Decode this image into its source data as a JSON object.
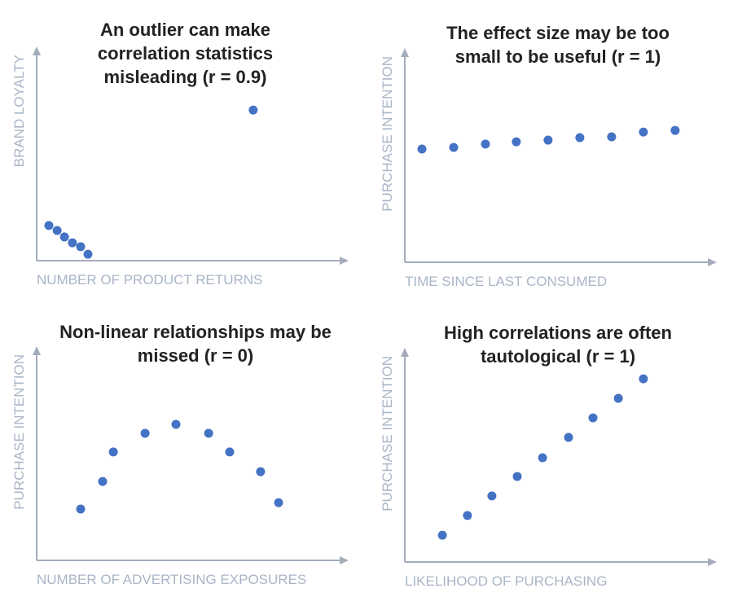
{
  "chart_data": [
    {
      "type": "scatter",
      "title": "An outlier can make correlation statistics misleading (r = 0.9)",
      "x_label": "NUMBER OF PRODUCT RETURNS",
      "y_label": "BRAND LOYALTY",
      "color": "#4472c4",
      "xlim": [
        0,
        100
      ],
      "ylim": [
        0,
        100
      ],
      "x": [
        4,
        6.7,
        9.1,
        11.7,
        14.4,
        16.8,
        70.9
      ],
      "values": [
        16.9,
        14.5,
        11.4,
        8.6,
        6.7,
        3.1,
        72.5
      ]
    },
    {
      "type": "scatter",
      "title": "The effect size may be too small to be useful (r = 1)",
      "x_label": "TIME SINCE LAST CONSUMED",
      "y_label": "PURCHASE INTENTION",
      "color": "#4472c4",
      "xlim": [
        0,
        100
      ],
      "ylim": [
        0,
        100
      ],
      "x": [
        5.6,
        16,
        26.4,
        36.5,
        46.9,
        57.3,
        67.7,
        78.1,
        88.5
      ],
      "values": [
        54.5,
        55.3,
        56.9,
        58,
        58.8,
        60,
        60.4,
        62.7,
        63.5
      ]
    },
    {
      "type": "scatter",
      "title": "Non-linear relationships may be missed (r = 0)",
      "x_label": "NUMBER OF ADVERTISING EXPOSURES",
      "y_label": "PURCHASE INTENTION",
      "color": "#4472c4",
      "xlim": [
        0,
        100
      ],
      "ylim": [
        0,
        100
      ],
      "x": [
        14.4,
        21.6,
        25.1,
        35.5,
        45.6,
        56.3,
        63.2,
        73.3,
        79.2
      ],
      "values": [
        24.7,
        38,
        52.2,
        61.2,
        65.5,
        61.2,
        52.2,
        42.7,
        27.8
      ]
    },
    {
      "type": "scatter",
      "title": "High correlations are often tautological (r = 1)",
      "x_label": "LIKELIHOOD OF PURCHASING",
      "y_label": "PURCHASE INTENTION",
      "color": "#4472c4",
      "xlim": [
        0,
        100
      ],
      "ylim": [
        0,
        100
      ],
      "x": [
        12.3,
        20.5,
        28.5,
        36.8,
        45.1,
        53.6,
        61.6,
        69.9,
        78.1
      ],
      "values": [
        12.9,
        22.4,
        31.8,
        41.2,
        50.2,
        60,
        69.4,
        78.8,
        88.2
      ]
    }
  ]
}
